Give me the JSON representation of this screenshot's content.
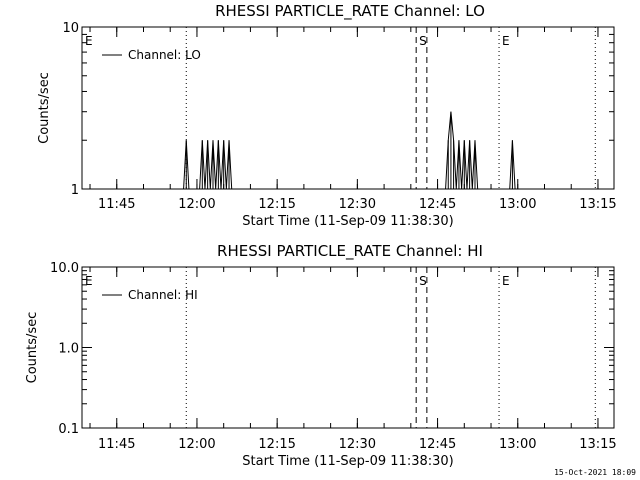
{
  "footer": {
    "timestamp": "15-Oct-2021 18:09"
  },
  "chart_data": [
    {
      "type": "line",
      "title": "RHESSI PARTICLE_RATE Channel: LO",
      "xlabel": "Start Time (11-Sep-09 11:38:30)",
      "ylabel": "Counts/sec",
      "y_scale": "log",
      "xlim": [
        "11:38:30",
        "13:18:00"
      ],
      "ylim": [
        1,
        10
      ],
      "x_ticks": [
        "11:45",
        "12:00",
        "12:15",
        "12:30",
        "12:45",
        "13:00",
        "13:15"
      ],
      "y_ticks": [
        "1",
        "10"
      ],
      "legend": {
        "labels": [
          "Channel: LO"
        ],
        "placement": "top-left"
      },
      "series": [
        {
          "name": "Channel: LO",
          "x": [
            "11:57:30",
            "11:58:00",
            "11:58:30",
            "12:00:30",
            "12:01:00",
            "12:01:30",
            "12:02:00",
            "12:02:30",
            "12:03:00",
            "12:03:30",
            "12:04:00",
            "12:04:30",
            "12:05:00",
            "12:05:30",
            "12:06:00",
            "12:06:30",
            "12:46:30",
            "12:47:00",
            "12:47:30",
            "12:48:00",
            "12:48:30",
            "12:49:00",
            "12:49:30",
            "12:50:00",
            "12:50:30",
            "12:51:00",
            "12:51:30",
            "12:52:00",
            "12:52:30",
            "12:58:30",
            "12:59:00",
            "12:59:30",
            "13:00:00"
          ],
          "values": [
            1,
            2,
            1,
            1,
            2,
            1,
            2,
            1,
            2,
            1,
            2,
            1,
            2,
            1,
            2,
            1,
            1,
            2,
            3,
            2,
            1,
            2,
            1,
            2,
            1,
            2,
            1,
            2,
            1,
            1,
            2,
            1,
            1
          ]
        }
      ],
      "markers": [
        {
          "time": "11:38:30",
          "style": "dotted",
          "label": "E"
        },
        {
          "time": "11:58:00",
          "style": "dotted",
          "label": ""
        },
        {
          "time": "12:41:00",
          "style": "dashed",
          "label": "S"
        },
        {
          "time": "12:43:00",
          "style": "dashed",
          "label": ""
        },
        {
          "time": "12:56:30",
          "style": "dotted",
          "label": "E"
        },
        {
          "time": "13:14:30",
          "style": "dotted",
          "label": ""
        }
      ]
    },
    {
      "type": "line",
      "title": "RHESSI PARTICLE_RATE Channel: HI",
      "xlabel": "Start Time (11-Sep-09 11:38:30)",
      "ylabel": "Counts/sec",
      "y_scale": "log",
      "xlim": [
        "11:38:30",
        "13:18:00"
      ],
      "ylim": [
        0.1,
        10
      ],
      "x_ticks": [
        "11:45",
        "12:00",
        "12:15",
        "12:30",
        "12:45",
        "13:00",
        "13:15"
      ],
      "y_ticks": [
        "0.1",
        "1.0",
        "10.0"
      ],
      "legend": {
        "labels": [
          "Channel: HI"
        ],
        "placement": "top-left"
      },
      "series": [
        {
          "name": "Channel: HI",
          "x": [],
          "values": []
        }
      ],
      "markers": [
        {
          "time": "11:38:30",
          "style": "dotted",
          "label": "E"
        },
        {
          "time": "11:58:00",
          "style": "dotted",
          "label": ""
        },
        {
          "time": "12:41:00",
          "style": "dashed",
          "label": "S"
        },
        {
          "time": "12:43:00",
          "style": "dashed",
          "label": ""
        },
        {
          "time": "12:56:30",
          "style": "dotted",
          "label": "E"
        },
        {
          "time": "13:14:30",
          "style": "dotted",
          "label": ""
        }
      ]
    }
  ]
}
